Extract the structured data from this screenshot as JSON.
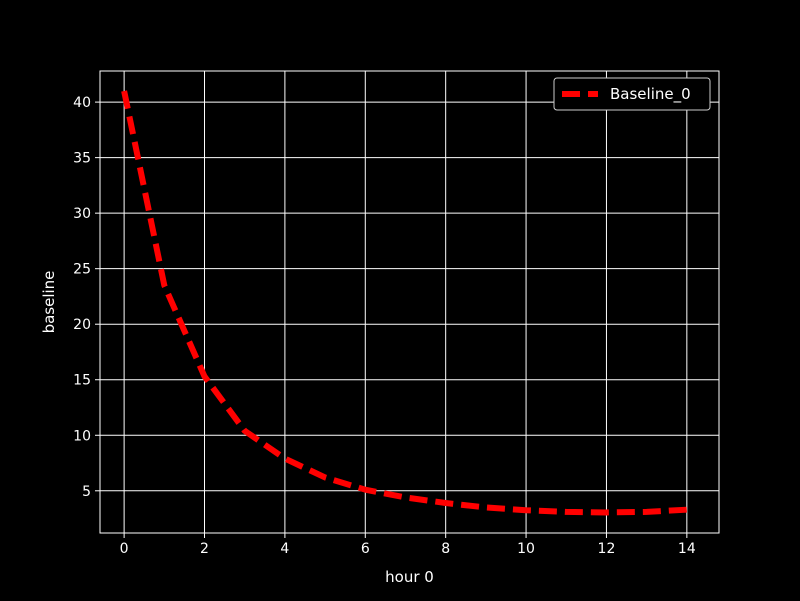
{
  "colors": {
    "background": "#000000",
    "foreground": "#ffffff",
    "series": "#ff0000"
  },
  "chart_data": {
    "type": "line",
    "title": "",
    "xlabel": "hour 0",
    "ylabel": "baseline",
    "xlim": [
      -0.6,
      14.8
    ],
    "ylim": [
      1.2,
      42.8
    ],
    "xticks": [
      0,
      2,
      4,
      6,
      8,
      10,
      12,
      14
    ],
    "yticks": [
      5,
      10,
      15,
      20,
      25,
      30,
      35,
      40
    ],
    "grid": true,
    "legend_position": "top-right",
    "line_style": "dashed",
    "series": [
      {
        "name": "Baseline_0",
        "color": "#ff0000",
        "x": [
          0,
          1,
          2,
          3,
          4,
          5,
          6,
          7,
          8,
          9,
          10,
          11,
          12,
          13,
          14
        ],
        "y": [
          41.0,
          23.5,
          15.3,
          10.4,
          7.9,
          6.2,
          5.1,
          4.4,
          3.9,
          3.5,
          3.25,
          3.1,
          3.05,
          3.1,
          3.3
        ]
      }
    ]
  }
}
